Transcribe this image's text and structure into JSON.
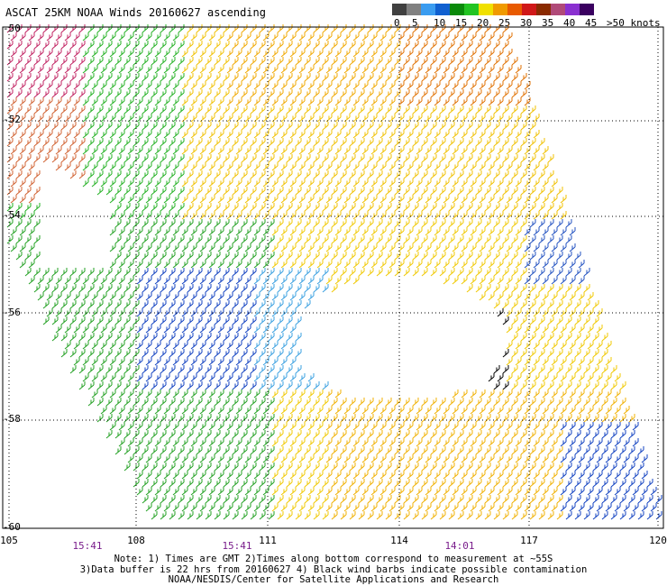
{
  "title": "ASCAT 25KM NOAA Winds 20160627 ascending",
  "colorbar": {
    "colors": [
      "#404040",
      "#808080",
      "#3a9cf0",
      "#1060d0",
      "#0a8a0a",
      "#22c422",
      "#f0e000",
      "#f09a00",
      "#e85a00",
      "#d01818",
      "#8a2a00",
      "#b04a78",
      "#8a30d0",
      "#3a0060"
    ],
    "labels": [
      "0",
      "5",
      "10",
      "15",
      "20",
      "25",
      "30",
      "35",
      "40",
      "45",
      ">50 knots"
    ]
  },
  "lat_labels": [
    "-50",
    "-52",
    "-54",
    "-56",
    "-58",
    "-60"
  ],
  "lon_labels": [
    "105",
    "108",
    "111",
    "114",
    "117",
    "120"
  ],
  "time_labels": [
    "15:41",
    "15:41",
    "14:01"
  ],
  "notes": [
    "Note: 1) Times are GMT 2)Times along bottom correspond to measurement at ~55S",
    "3)Data buffer is 22 hrs from 20160627 4) Black wind barbs indicate possible contamination",
    "NOAA/NESDIS/Center for Satellite Applications and Research"
  ]
}
